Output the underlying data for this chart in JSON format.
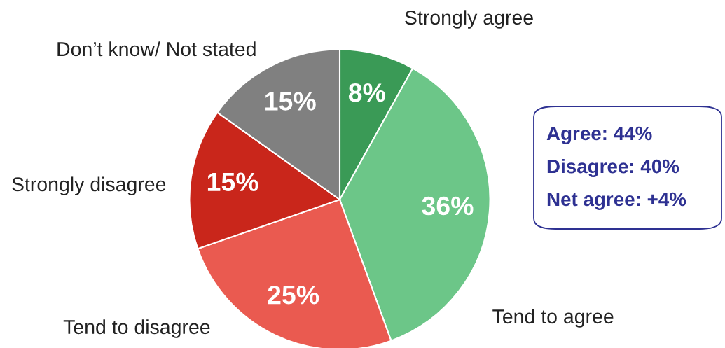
{
  "chart_data": {
    "type": "pie",
    "categories": [
      "Strongly agree",
      "Tend to agree",
      "Tend to disagree",
      "Strongly disagree",
      "Don’t know/ Not stated"
    ],
    "values": [
      8,
      36,
      25,
      15,
      15
    ],
    "colors": [
      "#3a9a56",
      "#6cc688",
      "#ea5a50",
      "#c9261b",
      "#808080"
    ],
    "value_labels": [
      "8%",
      "36%",
      "25%",
      "15%",
      "15%"
    ],
    "annotations": [
      "Agree: 44%",
      "Disagree: 40%",
      "Net agree: +4%"
    ]
  }
}
